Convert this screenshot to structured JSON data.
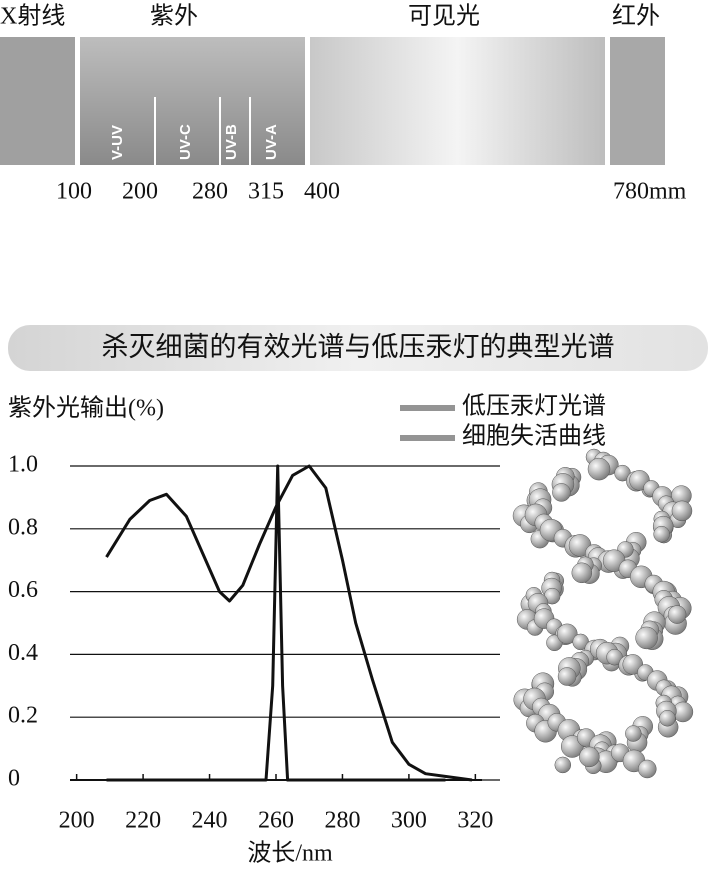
{
  "spectrum": {
    "bands": [
      "X射线",
      "紫外",
      "可见光",
      "红外"
    ],
    "uv_bands": [
      "V-UV",
      "UV-C",
      "UV-B",
      "UV-A"
    ],
    "scale_labels": [
      "100",
      "200",
      "280",
      "315",
      "400",
      "780mm"
    ]
  },
  "chart_data": {
    "type": "line",
    "title": "杀灭细菌的有效光谱与低压汞灯的典型光谱",
    "y_label": "紫外光输出(%)",
    "x_label": "波长/nm",
    "xlim": [
      198,
      322
    ],
    "xticks": [
      200,
      220,
      240,
      260,
      280,
      300,
      320
    ],
    "ylim": [
      0,
      1
    ],
    "yticks": [
      0,
      0.2,
      0.4,
      0.6,
      0.8,
      {
        "value": 1,
        "label": "1.0"
      }
    ],
    "grid": true,
    "legend": "top-right",
    "series": [
      {
        "name": "低压汞灯光谱",
        "color": "#111111",
        "x": [
          209,
          257,
          259,
          260.5,
          262,
          263.5,
          311
        ],
        "values": [
          0,
          0,
          0.3,
          1.0,
          0.3,
          0,
          0
        ]
      },
      {
        "name": "细胞失活曲线",
        "color": "#111111",
        "x": [
          209,
          216,
          222,
          227,
          233,
          238,
          243,
          246,
          250,
          255,
          260,
          265,
          270,
          275,
          280,
          284,
          289,
          295,
          300,
          305,
          312,
          319
        ],
        "values": [
          0.71,
          0.83,
          0.89,
          0.91,
          0.84,
          0.72,
          0.6,
          0.57,
          0.62,
          0.75,
          0.87,
          0.97,
          1.0,
          0.93,
          0.7,
          0.5,
          0.32,
          0.12,
          0.05,
          0.02,
          0.01,
          0
        ]
      }
    ]
  }
}
